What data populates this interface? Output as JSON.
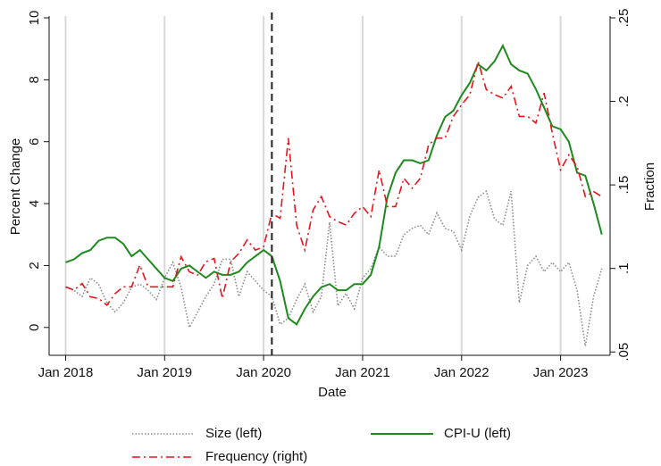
{
  "chart_data": {
    "type": "line",
    "xlabel": "Date",
    "ylabel": "Percent Change",
    "y2label": "Fraction",
    "x": [
      "2018-01",
      "2018-02",
      "2018-03",
      "2018-04",
      "2018-05",
      "2018-06",
      "2018-07",
      "2018-08",
      "2018-09",
      "2018-10",
      "2018-11",
      "2018-12",
      "2019-01",
      "2019-02",
      "2019-03",
      "2019-04",
      "2019-05",
      "2019-06",
      "2019-07",
      "2019-08",
      "2019-09",
      "2019-10",
      "2019-11",
      "2019-12",
      "2020-01",
      "2020-02",
      "2020-03",
      "2020-04",
      "2020-05",
      "2020-06",
      "2020-07",
      "2020-08",
      "2020-09",
      "2020-10",
      "2020-11",
      "2020-12",
      "2021-01",
      "2021-02",
      "2021-03",
      "2021-04",
      "2021-05",
      "2021-06",
      "2021-07",
      "2021-08",
      "2021-09",
      "2021-10",
      "2021-11",
      "2021-12",
      "2022-01",
      "2022-02",
      "2022-03",
      "2022-04",
      "2022-05",
      "2022-06",
      "2022-07",
      "2022-08",
      "2022-09",
      "2022-10",
      "2022-11",
      "2022-12",
      "2023-01",
      "2023-02",
      "2023-03",
      "2023-04",
      "2023-05",
      "2023-06"
    ],
    "series": [
      {
        "name": "Size (left)",
        "color": "#8c8c8c",
        "dash": "dotted",
        "axis": "y",
        "values": [
          1.3,
          1.2,
          1.0,
          1.6,
          1.4,
          0.8,
          0.5,
          0.8,
          1.3,
          1.4,
          1.2,
          0.9,
          1.6,
          2.1,
          1.3,
          0.0,
          0.5,
          1.0,
          1.4,
          2.2,
          2.2,
          1.0,
          1.8,
          1.5,
          1.2,
          1.0,
          0.1,
          0.3,
          0.9,
          1.4,
          0.5,
          1.0,
          3.4,
          0.7,
          1.1,
          0.6,
          1.6,
          1.9,
          2.6,
          2.3,
          2.3,
          3.0,
          3.2,
          3.3,
          3.0,
          3.7,
          3.2,
          3.1,
          2.5,
          3.6,
          4.2,
          4.4,
          3.5,
          3.3,
          4.4,
          0.8,
          2.0,
          2.3,
          1.8,
          2.1,
          1.8,
          2.1,
          1.2,
          -0.6,
          1.0,
          1.9
        ]
      },
      {
        "name": "CPI-U (left)",
        "color": "#1e8a1e",
        "dash": "solid",
        "axis": "y",
        "values": [
          2.1,
          2.2,
          2.4,
          2.5,
          2.8,
          2.9,
          2.9,
          2.7,
          2.3,
          2.5,
          2.2,
          1.9,
          1.6,
          1.5,
          1.9,
          2.0,
          1.8,
          1.6,
          1.8,
          1.7,
          1.7,
          1.8,
          2.1,
          2.3,
          2.5,
          2.3,
          1.5,
          0.3,
          0.1,
          0.6,
          1.0,
          1.3,
          1.4,
          1.2,
          1.2,
          1.4,
          1.4,
          1.7,
          2.6,
          4.2,
          5.0,
          5.4,
          5.4,
          5.3,
          5.4,
          6.2,
          6.8,
          7.0,
          7.5,
          7.9,
          8.5,
          8.3,
          8.6,
          9.1,
          8.5,
          8.3,
          8.2,
          7.7,
          7.1,
          6.5,
          6.4,
          6.0,
          5.0,
          4.9,
          4.0,
          3.0
        ]
      },
      {
        "name": "Frequency (right)",
        "color": "#e8141c",
        "dash": "dashdot",
        "axis": "y2",
        "values": [
          0.089,
          0.087,
          0.091,
          0.083,
          0.082,
          0.078,
          0.085,
          0.089,
          0.089,
          0.102,
          0.089,
          0.089,
          0.089,
          0.089,
          0.107,
          0.098,
          0.096,
          0.104,
          0.106,
          0.082,
          0.104,
          0.109,
          0.117,
          0.111,
          0.113,
          0.133,
          0.13,
          0.178,
          0.126,
          0.111,
          0.135,
          0.143,
          0.131,
          0.128,
          0.126,
          0.133,
          0.137,
          0.131,
          0.159,
          0.137,
          0.137,
          0.154,
          0.148,
          0.154,
          0.174,
          0.178,
          0.178,
          0.191,
          0.198,
          0.204,
          0.224,
          0.207,
          0.204,
          0.202,
          0.209,
          0.191,
          0.191,
          0.187,
          0.205,
          0.181,
          0.159,
          0.168,
          0.161,
          0.143,
          0.146,
          0.143
        ]
      }
    ],
    "xlim": [
      "2017-11",
      "2023-07"
    ],
    "xticks": [
      {
        "value": "2018-01",
        "label": "Jan 2018"
      },
      {
        "value": "2019-01",
        "label": "Jan 2019"
      },
      {
        "value": "2020-01",
        "label": "Jan 2020"
      },
      {
        "value": "2021-01",
        "label": "Jan 2021"
      },
      {
        "value": "2022-01",
        "label": "Jan 2022"
      },
      {
        "value": "2023-01",
        "label": "Jan 2023"
      }
    ],
    "ylim": [
      -0.9,
      10
    ],
    "yticks": [
      0,
      2,
      4,
      6,
      8,
      10
    ],
    "y2lim": [
      0.048,
      0.25
    ],
    "y2ticks": [
      {
        "value": 0.05,
        "label": ".05"
      },
      {
        "value": 0.1,
        "label": ".1"
      },
      {
        "value": 0.15,
        "label": ".15"
      },
      {
        "value": 0.2,
        "label": ".2"
      },
      {
        "value": 0.25,
        "label": ".25"
      }
    ],
    "grid": "x",
    "vline": "2020-02"
  }
}
